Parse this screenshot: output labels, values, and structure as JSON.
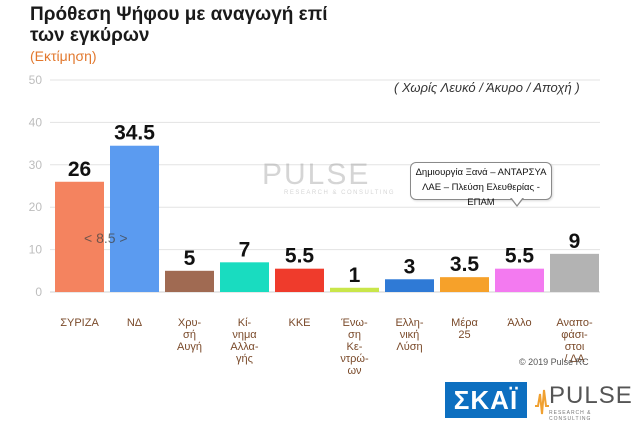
{
  "title": "Πρόθεση Ψήφου με αναγωγή επί των εγκύρων",
  "subtitle": "(Εκτίμηση)",
  "note": "( Χωρίς Λευκό / Άκυρο / Αποχή )",
  "callout": {
    "line1": "Δημιουργία Ξανά – ΑΝΤΑΡΣΥΑ",
    "line2": "ΛΑΕ – Πλεύση Ελευθερίας - ΕΠΑΜ"
  },
  "gap_label": "< 8.5 >",
  "watermark": {
    "text": "PULSE",
    "sub": "RESEARCH & CONSULTING"
  },
  "copyright": "© 2019 Pulse RC",
  "logos": {
    "skai": "ΣΚΑΪ",
    "pulse": "PULSE",
    "pulse_sub": "RESEARCH & CONSULTING"
  },
  "chart_data": {
    "type": "bar",
    "ylim": [
      0,
      50
    ],
    "yticks": [
      0,
      10,
      20,
      30,
      40,
      50
    ],
    "grid": true,
    "categories": [
      [
        "ΣΥΡΙΖΑ"
      ],
      [
        "ΝΔ"
      ],
      [
        "Χρυ-",
        "σή",
        "Αυγή"
      ],
      [
        "Κί-",
        "νημα",
        "Αλλα-",
        "γής"
      ],
      [
        "ΚΚΕ"
      ],
      [
        "Ένω-",
        "ση",
        "Κε-",
        "ντρώ-",
        "ων"
      ],
      [
        "Ελλη-",
        "νική",
        "Λύση"
      ],
      [
        "Μέρα",
        "25"
      ],
      [
        "Άλλο"
      ],
      [
        "Αναπο-",
        "φάσι-",
        "στοι",
        "/ ΔΑ"
      ]
    ],
    "values": [
      26,
      34.5,
      5,
      7,
      5.5,
      1,
      3,
      3.5,
      5.5,
      9
    ],
    "value_labels": [
      "26",
      "34.5",
      "5",
      "7",
      "5.5",
      "1",
      "3",
      "3.5",
      "5.5",
      "9"
    ],
    "colors": [
      "#f4835f",
      "#5b9bf0",
      "#a06a52",
      "#19dcc0",
      "#ef3b2c",
      "#c9e64a",
      "#2f7ad6",
      "#f6a12a",
      "#f37af0",
      "#b3b3b3"
    ]
  }
}
